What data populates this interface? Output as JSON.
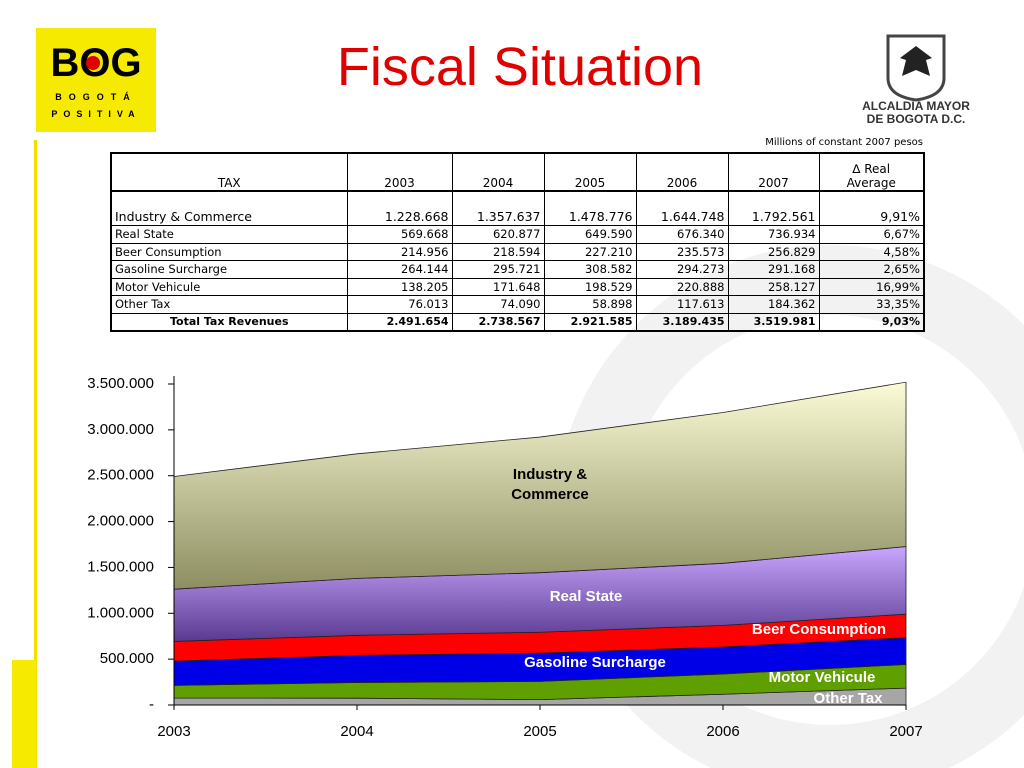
{
  "logo": {
    "mark": "BOG",
    "line1": "BOGOTÁ",
    "line2": "POSITIVA"
  },
  "title": "Fiscal Situation",
  "emblem": {
    "line1": "ALCALDIA MAYOR",
    "line2": "DE BOGOTA D.C."
  },
  "table": {
    "note": "Millions of constant 2007 pesos",
    "header": [
      "TAX",
      "2003",
      "2004",
      "2005",
      "2006",
      "2007",
      "∆ Real Average"
    ],
    "rows": [
      [
        "Industry & Commerce",
        "1.228.668",
        "1.357.637",
        "1.478.776",
        "1.644.748",
        "1.792.561",
        "9,91%"
      ],
      [
        "Real State",
        "569.668",
        "620.877",
        "649.590",
        "676.340",
        "736.934",
        "6,67%"
      ],
      [
        "Beer Consumption",
        "214.956",
        "218.594",
        "227.210",
        "235.573",
        "256.829",
        "4,58%"
      ],
      [
        "Gasoline Surcharge",
        "264.144",
        "295.721",
        "308.582",
        "294.273",
        "291.168",
        "2,65%"
      ],
      [
        "Motor Vehicule",
        "138.205",
        "171.648",
        "198.529",
        "220.888",
        "258.127",
        "16,99%"
      ],
      [
        "Other Tax",
        "76.013",
        "74.090",
        "58.898",
        "117.613",
        "184.362",
        "33,35%"
      ],
      [
        "Total Tax Revenues",
        "2.491.654",
        "2.738.567",
        "2.921.585",
        "3.189.435",
        "3.519.981",
        "9,03%"
      ]
    ]
  },
  "chart_data": {
    "type": "stacked_area",
    "categories": [
      "2003",
      "2004",
      "2005",
      "2006",
      "2007"
    ],
    "ylim": [
      0,
      3500000
    ],
    "yticks": [
      {
        "value": 0,
        "label": "-"
      },
      {
        "value": 500000,
        "label": "500.000"
      },
      {
        "value": 1000000,
        "label": "1.000.000"
      },
      {
        "value": 1500000,
        "label": "1.500.000"
      },
      {
        "value": 2000000,
        "label": "2.000.000"
      },
      {
        "value": 2500000,
        "label": "2.500.000"
      },
      {
        "value": 3000000,
        "label": "3.000.000"
      },
      {
        "value": 3500000,
        "label": "3.500.000"
      }
    ],
    "series": [
      {
        "name": "Other Tax",
        "color": "#a6a6a6",
        "values": [
          76013,
          74090,
          58898,
          117613,
          184362
        ]
      },
      {
        "name": "Motor Vehicule",
        "color": "#5fa000",
        "values": [
          138205,
          171648,
          198529,
          220888,
          258127
        ]
      },
      {
        "name": "Gasoline Surcharge",
        "color": "#0000e6",
        "values": [
          264144,
          295721,
          308582,
          294273,
          291168
        ]
      },
      {
        "name": "Beer Consumption",
        "color": "#ff0000",
        "values": [
          214956,
          218594,
          227210,
          235573,
          256829
        ]
      },
      {
        "name": "Real State",
        "color": "#a070e0",
        "values": [
          569668,
          620877,
          649590,
          676340,
          736934
        ]
      },
      {
        "name": "Industry & Commerce",
        "color": "#d8d8a0",
        "values": [
          1228668,
          1357637,
          1478776,
          1644748,
          1792561
        ]
      }
    ]
  }
}
